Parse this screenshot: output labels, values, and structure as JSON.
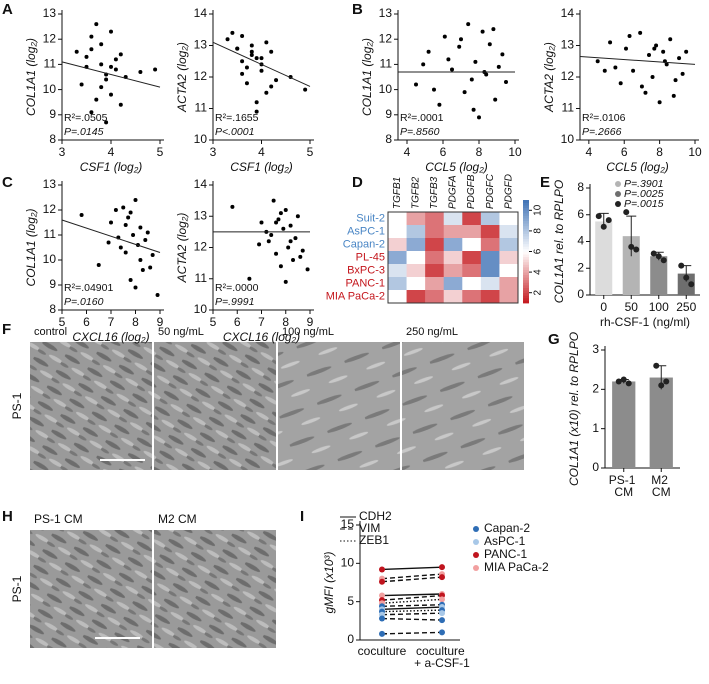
{
  "panel_labels": [
    "A",
    "B",
    "C",
    "D",
    "E",
    "F",
    "G",
    "H",
    "I"
  ],
  "chart_data": [
    {
      "type": "scatter",
      "ylabel": "COL1A1 (log₂)",
      "xlabel": "CSF1 (log₂)",
      "xlim": [
        3,
        5
      ],
      "xticks": [
        3,
        4,
        5
      ],
      "ylim": [
        8,
        13
      ],
      "yticks": [
        8,
        9,
        10,
        11,
        12,
        13
      ],
      "x": [
        3.3,
        3.5,
        3.6,
        3.7,
        3.8,
        3.9,
        4.0,
        4.1,
        4.2,
        3.4,
        3.6,
        3.8,
        3.9,
        4.0,
        4.1,
        4.3,
        3.5,
        3.7,
        3.9,
        4.0,
        4.2,
        4.6,
        3.8,
        3.6,
        4.9
      ],
      "values": [
        11.5,
        10.9,
        12.1,
        9.6,
        11.0,
        10.4,
        12.3,
        10.8,
        11.4,
        10.2,
        9.1,
        11.8,
        10.6,
        9.8,
        11.2,
        10.5,
        11.3,
        12.6,
        8.7,
        10.9,
        9.4,
        10.7,
        10.1,
        11.6,
        10.8
      ],
      "trend_x": [
        3,
        5
      ],
      "trend_y": [
        11.1,
        10.1
      ],
      "annotations": [
        "R²=.0505",
        "P=.0145"
      ]
    },
    {
      "type": "scatter",
      "ylabel": "ACTA2 (log₂)",
      "xlabel": "CSF1 (log₂)",
      "xlim": [
        3,
        5
      ],
      "xticks": [
        3,
        4,
        5
      ],
      "ylim": [
        10,
        14
      ],
      "yticks": [
        10,
        11,
        12,
        13,
        14
      ],
      "x": [
        3.3,
        3.5,
        3.6,
        3.7,
        3.8,
        3.9,
        4.0,
        4.1,
        4.2,
        3.4,
        3.6,
        3.8,
        3.9,
        4.0,
        4.1,
        4.3,
        3.5,
        3.7,
        3.9,
        4.0,
        4.2,
        4.6,
        3.8,
        3.6,
        4.9
      ],
      "values": [
        13.2,
        12.9,
        12.5,
        11.8,
        13.0,
        12.6,
        12.2,
        11.5,
        12.8,
        13.4,
        12.1,
        12.7,
        11.2,
        12.4,
        13.1,
        11.9,
        12.9,
        12.3,
        10.9,
        12.6,
        11.7,
        12.0,
        12.8,
        13.3,
        11.6
      ],
      "trend_x": [
        3,
        5
      ],
      "trend_y": [
        13.1,
        11.7
      ],
      "annotations": [
        "R²=.1655",
        "P<.0001"
      ]
    },
    {
      "type": "scatter",
      "ylabel": "COL1A1 (log₂)",
      "xlabel": "CCL5 (log₂)",
      "xlim": [
        3.5,
        10
      ],
      "xticks": [
        4,
        6,
        8,
        10
      ],
      "ylim": [
        8,
        13
      ],
      "yticks": [
        8,
        9,
        10,
        11,
        12,
        13
      ],
      "x": [
        4.5,
        5.2,
        5.8,
        6.1,
        6.5,
        6.9,
        7.2,
        7.4,
        7.6,
        7.8,
        8.0,
        8.2,
        8.4,
        8.6,
        8.9,
        9.1,
        9.3,
        5.5,
        6.3,
        7.0,
        7.7,
        8.3,
        8.8,
        9.5,
        4.9
      ],
      "values": [
        10.2,
        11.5,
        9.4,
        12.1,
        10.8,
        11.7,
        9.9,
        12.6,
        10.4,
        11.1,
        8.9,
        12.3,
        10.6,
        11.8,
        9.6,
        10.9,
        11.4,
        10.0,
        11.2,
        12.0,
        9.2,
        10.7,
        12.4,
        10.3,
        11.0
      ],
      "trend_x": [
        3.5,
        10
      ],
      "trend_y": [
        10.7,
        10.7
      ],
      "annotations": [
        "R²=.0001",
        "P=.8560"
      ]
    },
    {
      "type": "scatter",
      "ylabel": "ACTA2 (log₂)",
      "xlabel": "CCL5 (log₂)",
      "xlim": [
        3.5,
        10
      ],
      "xticks": [
        4,
        6,
        8,
        10
      ],
      "ylim": [
        10,
        14
      ],
      "yticks": [
        10,
        11,
        12,
        13,
        14
      ],
      "x": [
        4.5,
        5.2,
        5.8,
        6.1,
        6.5,
        6.9,
        7.2,
        7.4,
        7.6,
        7.8,
        8.0,
        8.2,
        8.4,
        8.6,
        8.9,
        9.1,
        9.3,
        5.5,
        6.3,
        7.0,
        7.7,
        8.3,
        8.8,
        9.5,
        4.9
      ],
      "values": [
        12.5,
        13.1,
        11.8,
        12.9,
        12.2,
        13.4,
        11.5,
        12.7,
        12.0,
        13.0,
        11.2,
        12.8,
        12.4,
        13.2,
        11.9,
        12.6,
        12.1,
        12.3,
        13.3,
        11.7,
        12.9,
        12.5,
        11.4,
        12.8,
        12.2
      ],
      "trend_x": [
        3.5,
        10
      ],
      "trend_y": [
        12.65,
        12.4
      ],
      "annotations": [
        "R²=.0106",
        "P=.2666"
      ]
    },
    {
      "type": "scatter",
      "ylabel": "COL1A1 (log₂)",
      "xlabel": "CXCL16 (log₂)",
      "xlim": [
        5,
        9
      ],
      "xticks": [
        5,
        6,
        7,
        8,
        9
      ],
      "ylim": [
        8,
        13
      ],
      "yticks": [
        8,
        9,
        10,
        11,
        12,
        13
      ],
      "x": [
        5.8,
        6.5,
        7.0,
        7.3,
        7.5,
        7.6,
        7.7,
        7.8,
        7.9,
        8.0,
        8.1,
        8.2,
        8.3,
        8.4,
        8.5,
        8.7,
        7.2,
        7.4,
        7.8,
        8.0,
        8.6,
        6.9,
        7.6,
        8.2,
        8.9
      ],
      "values": [
        11.8,
        9.8,
        11.5,
        10.9,
        12.1,
        10.3,
        11.7,
        9.2,
        11.0,
        12.4,
        10.6,
        11.3,
        9.6,
        10.8,
        11.1,
        10.2,
        12.0,
        10.5,
        11.9,
        8.9,
        9.7,
        10.7,
        11.4,
        10.0,
        8.6
      ],
      "trend_x": [
        5,
        9
      ],
      "trend_y": [
        11.6,
        10.3
      ],
      "annotations": [
        "R²=.04901",
        "P=.0160"
      ]
    },
    {
      "type": "scatter",
      "ylabel": "ACTA2 (log₂)",
      "xlabel": "CXCL16 (log₂)",
      "xlim": [
        5,
        9
      ],
      "xticks": [
        5,
        6,
        7,
        8,
        9
      ],
      "ylim": [
        10,
        14
      ],
      "yticks": [
        10,
        11,
        12,
        13,
        14
      ],
      "x": [
        5.8,
        6.5,
        7.0,
        7.3,
        7.5,
        7.6,
        7.7,
        7.8,
        7.9,
        8.0,
        8.1,
        8.2,
        8.3,
        8.4,
        8.5,
        8.7,
        7.2,
        7.4,
        7.8,
        8.0,
        8.6,
        6.9,
        7.6,
        8.2,
        8.9
      ],
      "values": [
        13.3,
        11.0,
        12.8,
        12.2,
        13.5,
        11.8,
        12.9,
        11.4,
        12.6,
        13.2,
        12.0,
        12.7,
        11.6,
        12.3,
        13.0,
        11.9,
        12.5,
        12.4,
        13.1,
        10.9,
        11.7,
        12.1,
        12.8,
        12.2,
        11.3
      ],
      "trend_x": [
        5,
        9
      ],
      "trend_y": [
        12.5,
        12.5
      ],
      "annotations": [
        "R²=.0000",
        "P=.9991"
      ]
    },
    {
      "type": "heatmap",
      "columns": [
        "TGFB1",
        "TGFB2",
        "TGFB3",
        "PDGFA",
        "PDGFB",
        "PDGFC",
        "PDGFD"
      ],
      "rows": [
        "Suit-2",
        "AsPC-1",
        "Capan-2",
        "PL-45",
        "BxPC-3",
        "PANC-1",
        "MIA PaCa-2"
      ],
      "row_colors": [
        "#4a86c5",
        "#4a86c5",
        "#4a86c5",
        "#c4161c",
        "#c4161c",
        "#c4161c",
        "#c4161c"
      ],
      "values": [
        [
          6,
          4,
          3,
          7,
          2,
          8,
          6
        ],
        [
          6,
          8,
          3,
          4,
          4,
          2,
          7
        ],
        [
          5,
          9,
          2,
          9,
          6,
          3,
          8
        ],
        [
          9,
          6,
          3,
          5,
          2,
          10,
          5
        ],
        [
          7,
          5,
          2,
          4,
          3,
          10,
          6
        ],
        [
          8,
          6,
          4,
          9,
          6,
          7,
          4
        ],
        [
          6,
          2,
          3,
          5,
          3,
          2,
          4
        ]
      ],
      "clim": [
        1,
        11
      ],
      "cticks": [
        2,
        4,
        6,
        8,
        10
      ],
      "colors": [
        "#c4161c",
        "#ffffff",
        "#3f72b5"
      ]
    },
    {
      "type": "bar",
      "ylabel": "COL1A1 rel. to RPLPO",
      "xlabel": "rh-CSF-1 (ng/ml)",
      "categories": [
        "0",
        "50",
        "100",
        "250"
      ],
      "values": [
        5.5,
        4.4,
        2.9,
        1.6
      ],
      "errors": [
        0.6,
        1.5,
        0.3,
        0.6
      ],
      "points": [
        [
          5.9,
          5.1,
          5.6
        ],
        [
          6.2,
          3.6,
          3.4
        ],
        [
          3.1,
          2.9,
          2.6
        ],
        [
          2.2,
          1.3,
          0.8
        ]
      ],
      "colors": [
        "#dcdcdc",
        "#b4b4b4",
        "#8c8c8c",
        "#6e6e6e"
      ],
      "point_color": "#222222",
      "ylim": [
        0,
        8
      ],
      "yticks": [
        0,
        2,
        4,
        6,
        8
      ],
      "legend": [
        "P=.3901",
        "P=.0025",
        "P=.0015"
      ],
      "legend_colors": [
        "#b4b4b4",
        "#6e6e6e",
        "#222222"
      ]
    },
    {
      "type": "bar",
      "ylabel": "COL1A1 (x10) rel. to RPLPO",
      "categories": [
        "PS-1 CM",
        "M2 CM"
      ],
      "values": [
        2.2,
        2.3
      ],
      "errors": [
        0.05,
        0.3
      ],
      "points": [
        [
          2.2,
          2.25,
          2.15
        ],
        [
          2.6,
          2.1,
          2.2
        ]
      ],
      "colors": [
        "#8c8c8c",
        "#8c8c8c"
      ],
      "point_color": "#222222",
      "ylim": [
        0,
        3
      ],
      "yticks": [
        0,
        1,
        2,
        3
      ]
    },
    {
      "type": "line",
      "ylabel": "gMFI (x10³)",
      "categories": [
        "coculture",
        "coculture + a-CSF-1"
      ],
      "ylim": [
        0,
        15
      ],
      "yticks": [
        0,
        5,
        10,
        15
      ],
      "line_legend": [
        "CDH2",
        "VIM",
        "ZEB1"
      ],
      "line_styles": [
        "solid",
        "dashed",
        "dotted"
      ],
      "cell_legend": [
        "Capan-2",
        "AsPC-1",
        "PANC-1",
        "MIA PaCa-2"
      ],
      "cell_colors": [
        "#2e6db5",
        "#a8c8e8",
        "#c0141e",
        "#f2a0a0"
      ],
      "series": [
        {
          "color": "#c0141e",
          "style": "solid",
          "values": [
            9.2,
            9.5
          ]
        },
        {
          "color": "#f2a0a0",
          "style": "dashed",
          "values": [
            8.0,
            8.6
          ]
        },
        {
          "color": "#c0141e",
          "style": "dashed",
          "values": [
            7.6,
            8.2
          ]
        },
        {
          "color": "#f2a0a0",
          "style": "solid",
          "values": [
            5.8,
            6.0
          ]
        },
        {
          "color": "#c0141e",
          "style": "dashed",
          "values": [
            5.2,
            5.8
          ]
        },
        {
          "color": "#f2a0a0",
          "style": "dotted",
          "values": [
            4.8,
            5.3
          ]
        },
        {
          "color": "#2e6db5",
          "style": "dashed",
          "values": [
            4.4,
            4.6
          ]
        },
        {
          "color": "#a8c8e8",
          "style": "solid",
          "values": [
            4.0,
            4.3
          ]
        },
        {
          "color": "#2e6db5",
          "style": "dotted",
          "values": [
            3.7,
            3.9
          ]
        },
        {
          "color": "#a8c8e8",
          "style": "dashed",
          "values": [
            3.3,
            3.5
          ]
        },
        {
          "color": "#2e6db5",
          "style": "dashed",
          "values": [
            2.8,
            2.6
          ]
        },
        {
          "color": "#2e6db5",
          "style": "dashed",
          "values": [
            0.8,
            1.0
          ]
        }
      ]
    }
  ],
  "panel_f": {
    "labels": [
      "control",
      "50 ng/mL",
      "100 ng/mL",
      "250 ng/mL"
    ],
    "side": "PS-1"
  },
  "panel_h": {
    "labels": [
      "PS-1 CM",
      "M2 CM"
    ],
    "side": "PS-1"
  }
}
